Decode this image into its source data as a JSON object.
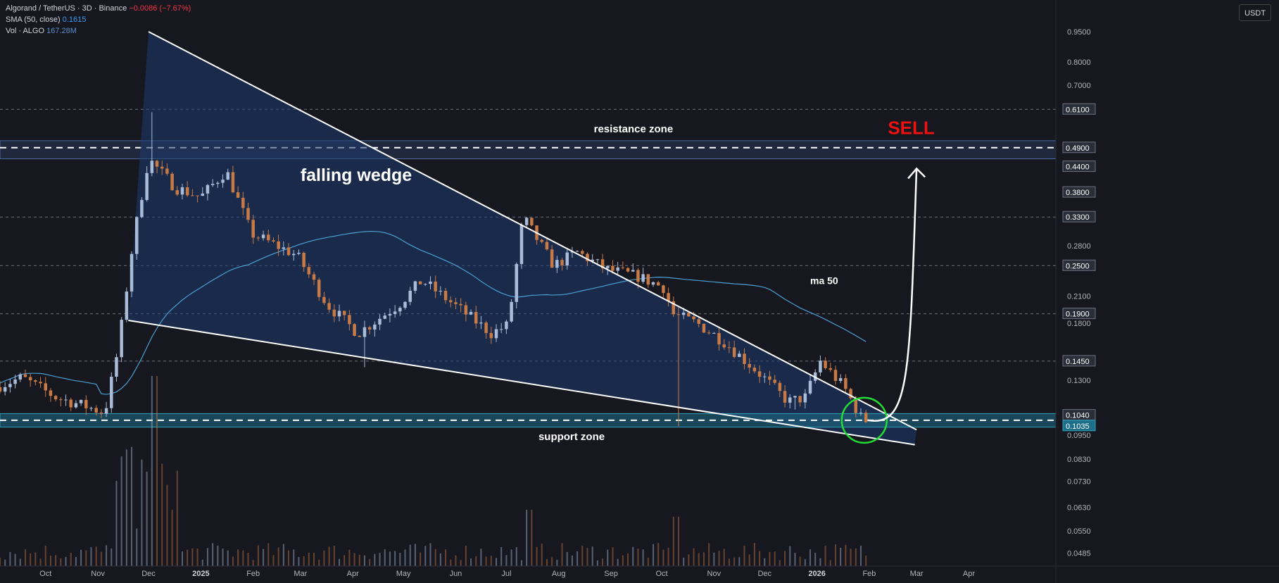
{
  "header": {
    "symbol": "Algorand / TetherUS · 3D · Binance",
    "change": "−0.0086 (−7.67%)",
    "sma_label": "SMA (50, close)",
    "sma_value": "0.1615",
    "vol_label": "Vol · ALGO",
    "vol_value": "167.28M"
  },
  "currency": "USDT",
  "colors": {
    "background": "#17171f",
    "up": "#a8bcd9",
    "down": "#c87a46",
    "ma": "#4aa0d4",
    "wedge": "#1d3a6e",
    "support": "#1d6e89",
    "circle": "#22dd33",
    "sell": "#ee1111"
  },
  "annotations": {
    "falling_wedge": "falling wedge",
    "resistance_zone": "resistance zone",
    "support_zone": "support zone",
    "ma50": "ma 50",
    "sell": "SELL"
  },
  "chart_data": {
    "type": "candlestick",
    "log_scale": true,
    "ylim": [
      0.0465,
      1.12
    ],
    "price_ticks": [
      "0.9500",
      "0.8000",
      "0.7000",
      "0.2800",
      "0.2100",
      "0.1800",
      "0.1300",
      "0.0950",
      "0.0830",
      "0.0730",
      "0.0630",
      "0.0550",
      "0.0485"
    ],
    "level_labels": [
      "0.6100",
      "0.4900",
      "0.4400",
      "0.3800",
      "0.3300",
      "0.2500",
      "0.1900",
      "0.1450",
      "0.1040",
      "0.1035"
    ],
    "x_ticks": [
      "Oct",
      "Nov",
      "Dec",
      "2025",
      "Feb",
      "Mar",
      "Apr",
      "May",
      "Jun",
      "Jul",
      "Aug",
      "Sep",
      "Oct",
      "Nov",
      "Dec",
      "2026",
      "Feb",
      "Mar",
      "Apr"
    ],
    "x_tick_dates": [
      "2024-10-01",
      "2024-11-01",
      "2024-12-01",
      "2025-01-01",
      "2025-02-01",
      "2025-03-01",
      "2025-04-01",
      "2025-05-01",
      "2025-06-01",
      "2025-07-01",
      "2025-08-01",
      "2025-09-01",
      "2025-10-01",
      "2025-11-01",
      "2025-12-01",
      "2026-01-01",
      "2026-02-01",
      "2026-03-01",
      "2026-04-01"
    ],
    "dashed_levels": [
      0.61,
      0.33,
      0.25,
      0.19,
      0.145
    ],
    "resistance_zone": {
      "low": 0.46,
      "high": 0.51,
      "line": 0.49
    },
    "support_zone": {
      "low": 0.0995,
      "high": 0.1075,
      "line": 0.1035
    },
    "wedge_upper": [
      [
        "2024-12-01",
        0.95
      ],
      [
        "2026-03-01",
        0.098
      ]
    ],
    "wedge_lower": [
      [
        "2024-11-19",
        0.183
      ],
      [
        "2026-02-28",
        0.09
      ]
    ],
    "projection_arrow": [
      [
        "2026-01-31",
        0.1035
      ],
      [
        "2026-03-01",
        0.435
      ]
    ],
    "circle_center": [
      "2026-01-29",
      0.1035
    ],
    "key_points": [
      {
        "date": "2024-11-25",
        "close": 0.29
      },
      {
        "date": "2024-12-04",
        "high": 0.6,
        "close": 0.46
      },
      {
        "date": "2025-01-19",
        "close": 0.43
      },
      {
        "date": "2025-04-07",
        "low": 0.14
      },
      {
        "date": "2025-07-14",
        "close": 0.33
      },
      {
        "date": "2025-10-10",
        "low": 0.1
      },
      {
        "date": "2025-12-18",
        "low": 0.11
      },
      {
        "date": "2026-01-06",
        "close": 0.145
      },
      {
        "date": "2026-01-31",
        "close": 0.1035
      }
    ]
  }
}
